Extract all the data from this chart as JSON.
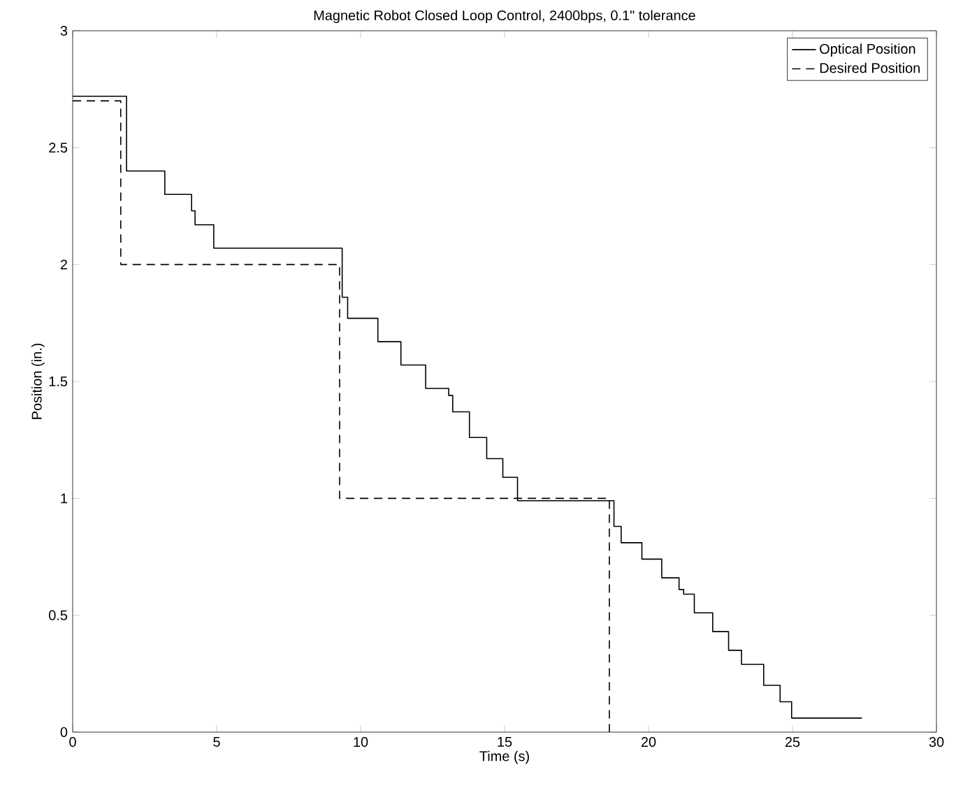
{
  "chart_data": {
    "type": "step",
    "title": "Magnetic Robot Closed Loop Control, 2400bps, 0.1\" tolerance",
    "xlabel": "Time (s)",
    "ylabel": "Position (in.)",
    "xlim": [
      0,
      30
    ],
    "xticks": [
      0,
      5,
      10,
      15,
      20,
      25,
      30
    ],
    "ylim": [
      0,
      3
    ],
    "yticks": [
      0,
      0.5,
      1,
      1.5,
      2,
      2.5,
      3
    ],
    "legend": "top right",
    "grid": false,
    "series": [
      {
        "name": "Optical Position",
        "color": "#000000",
        "line_style": "solid",
        "x": [
          0,
          1.87,
          3.2,
          4.13,
          4.25,
          4.9,
          9.36,
          9.55,
          10.6,
          11.4,
          12.26,
          13.06,
          13.2,
          13.78,
          14.38,
          14.94,
          15.45,
          18.8,
          19.05,
          19.77,
          20.46,
          21.06,
          21.22,
          21.59,
          22.23,
          22.78,
          23.23,
          24.0,
          24.57,
          24.97,
          27.41
        ],
        "values": [
          2.72,
          2.4,
          2.3,
          2.23,
          2.17,
          2.07,
          1.86,
          1.77,
          1.67,
          1.57,
          1.47,
          1.44,
          1.37,
          1.26,
          1.17,
          1.09,
          0.99,
          0.88,
          0.81,
          0.74,
          0.66,
          0.61,
          0.59,
          0.51,
          0.43,
          0.35,
          0.29,
          0.2,
          0.13,
          0.06,
          0.06
        ]
      },
      {
        "name": "Desired Position",
        "color": "#000000",
        "line_style": "dashed",
        "x": [
          0,
          1.67,
          9.27,
          18.64
        ],
        "values": [
          2.7,
          2.0,
          1.0,
          0
        ]
      }
    ]
  }
}
